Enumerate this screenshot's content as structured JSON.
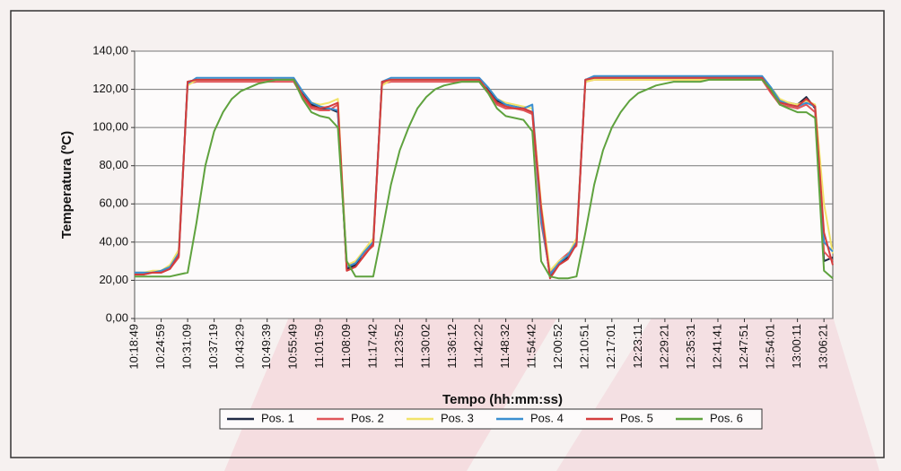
{
  "chart_data": {
    "type": "line",
    "xlabel": "Tempo (hh:mm:ss)",
    "ylabel": "Temperatura (ºC)",
    "ylim": [
      0,
      140
    ],
    "yticks": [
      {
        "value": 0,
        "label": "0,00"
      },
      {
        "value": 20,
        "label": "20,00"
      },
      {
        "value": 40,
        "label": "40,00"
      },
      {
        "value": 60,
        "label": "60,00"
      },
      {
        "value": 80,
        "label": "80,00"
      },
      {
        "value": 100,
        "label": "100,00"
      },
      {
        "value": 120,
        "label": "120,00"
      },
      {
        "value": 140,
        "label": "140,00"
      }
    ],
    "grid": true,
    "legend": "bottom",
    "categories": [
      "10:18:49",
      null,
      null,
      "10:24:59",
      null,
      null,
      "10:31:09",
      null,
      null,
      "10:37:19",
      null,
      null,
      "10:43:29",
      null,
      null,
      "10:49:39",
      null,
      null,
      "10:55:49",
      null,
      null,
      "11:01:59",
      null,
      null,
      "11:08:09",
      null,
      null,
      "11:17:42",
      null,
      null,
      "11:23:52",
      null,
      null,
      "11:30:02",
      null,
      null,
      "11:36:12",
      null,
      null,
      "11:42:22",
      null,
      null,
      "11:48:32",
      null,
      null,
      "11:54:42",
      null,
      null,
      "12:00:52",
      null,
      null,
      "12:10:51",
      null,
      null,
      "12:17:01",
      null,
      null,
      "12:23:11",
      null,
      null,
      "12:29:21",
      null,
      null,
      "12:35:31",
      null,
      null,
      "12:41:41",
      null,
      null,
      "12:47:51",
      null,
      null,
      "12:54:01",
      null,
      null,
      "13:00:11",
      null,
      null,
      "13:06:21",
      null
    ],
    "series": [
      {
        "name": "Pos. 1",
        "color": "#1f2a44",
        "values": [
          24,
          24,
          24,
          25,
          27,
          35,
          124,
          125,
          125,
          125,
          125,
          125,
          125,
          125,
          125,
          125,
          125,
          125,
          125,
          118,
          112,
          110,
          110,
          108,
          26,
          28,
          35,
          40,
          124,
          125,
          125,
          125,
          125,
          125,
          125,
          125,
          125,
          125,
          125,
          125,
          120,
          114,
          112,
          111,
          110,
          108,
          55,
          22,
          28,
          32,
          40,
          125,
          126,
          126,
          126,
          126,
          126,
          126,
          126,
          126,
          126,
          126,
          126,
          126,
          126,
          126,
          126,
          126,
          126,
          126,
          126,
          126,
          120,
          114,
          113,
          112,
          116,
          110,
          30,
          32
        ]
      },
      {
        "name": "Pos. 2",
        "color": "#e0565a",
        "values": [
          23,
          23,
          24,
          24,
          26,
          32,
          123,
          124,
          124,
          124,
          124,
          124,
          124,
          124,
          124,
          124,
          124,
          124,
          124,
          116,
          110,
          109,
          109,
          112,
          27,
          30,
          34,
          38,
          123,
          124,
          124,
          124,
          124,
          124,
          124,
          124,
          124,
          124,
          124,
          124,
          118,
          112,
          110,
          110,
          109,
          107,
          50,
          24,
          30,
          34,
          38,
          124,
          125,
          125,
          125,
          125,
          125,
          125,
          125,
          125,
          125,
          125,
          125,
          125,
          125,
          125,
          125,
          125,
          125,
          125,
          125,
          125,
          118,
          112,
          111,
          110,
          112,
          108,
          35,
          30
        ]
      },
      {
        "name": "Pos. 3",
        "color": "#f2e36a",
        "values": [
          24,
          24,
          25,
          25,
          28,
          36,
          122,
          125,
          125,
          125,
          125,
          125,
          125,
          125,
          125,
          125,
          125,
          125,
          125,
          119,
          113,
          112,
          113,
          115,
          28,
          30,
          36,
          42,
          122,
          125,
          125,
          125,
          125,
          125,
          125,
          125,
          125,
          125,
          125,
          125,
          121,
          115,
          113,
          112,
          111,
          110,
          60,
          25,
          30,
          33,
          42,
          124,
          125,
          125,
          125,
          125,
          125,
          125,
          125,
          125,
          125,
          125,
          125,
          125,
          125,
          125,
          125,
          125,
          125,
          125,
          125,
          125,
          121,
          115,
          113,
          112,
          114,
          112,
          60,
          34
        ]
      },
      {
        "name": "Pos. 4",
        "color": "#3a8fd0",
        "values": [
          24,
          24,
          24,
          25,
          27,
          34,
          123,
          126,
          126,
          126,
          126,
          126,
          126,
          126,
          126,
          126,
          126,
          126,
          126,
          119,
          113,
          111,
          110,
          109,
          27,
          29,
          35,
          40,
          124,
          126,
          126,
          126,
          126,
          126,
          126,
          126,
          126,
          126,
          126,
          126,
          121,
          115,
          112,
          111,
          110,
          112,
          52,
          23,
          29,
          33,
          40,
          125,
          127,
          127,
          127,
          127,
          127,
          127,
          127,
          127,
          127,
          127,
          127,
          127,
          127,
          127,
          127,
          127,
          127,
          127,
          127,
          127,
          121,
          114,
          112,
          111,
          113,
          111,
          40,
          35
        ]
      },
      {
        "name": "Pos. 5",
        "color": "#d43c3c",
        "values": [
          23,
          23,
          24,
          24,
          26,
          33,
          124,
          125,
          125,
          125,
          125,
          125,
          125,
          125,
          125,
          125,
          125,
          125,
          125,
          117,
          111,
          110,
          111,
          113,
          25,
          27,
          33,
          39,
          124,
          125,
          125,
          125,
          125,
          125,
          125,
          125,
          125,
          125,
          125,
          125,
          119,
          113,
          111,
          110,
          110,
          108,
          58,
          21,
          28,
          31,
          39,
          125,
          126,
          126,
          126,
          126,
          126,
          126,
          126,
          126,
          126,
          126,
          126,
          126,
          126,
          126,
          126,
          126,
          126,
          126,
          126,
          126,
          119,
          113,
          112,
          111,
          115,
          111,
          45,
          28
        ]
      },
      {
        "name": "Pos. 6",
        "color": "#5fa23e",
        "values": [
          22,
          22,
          22,
          22,
          22,
          23,
          24,
          50,
          80,
          98,
          108,
          115,
          119,
          121,
          123,
          124,
          125,
          125,
          125,
          115,
          108,
          106,
          105,
          100,
          30,
          22,
          22,
          22,
          45,
          70,
          88,
          100,
          110,
          116,
          120,
          122,
          123,
          124,
          124,
          124,
          118,
          110,
          106,
          105,
          104,
          98,
          30,
          22,
          21,
          21,
          22,
          45,
          70,
          88,
          100,
          108,
          114,
          118,
          120,
          122,
          123,
          124,
          124,
          124,
          124,
          125,
          125,
          125,
          125,
          125,
          125,
          125,
          120,
          112,
          110,
          108,
          108,
          105,
          25,
          21
        ]
      }
    ]
  }
}
